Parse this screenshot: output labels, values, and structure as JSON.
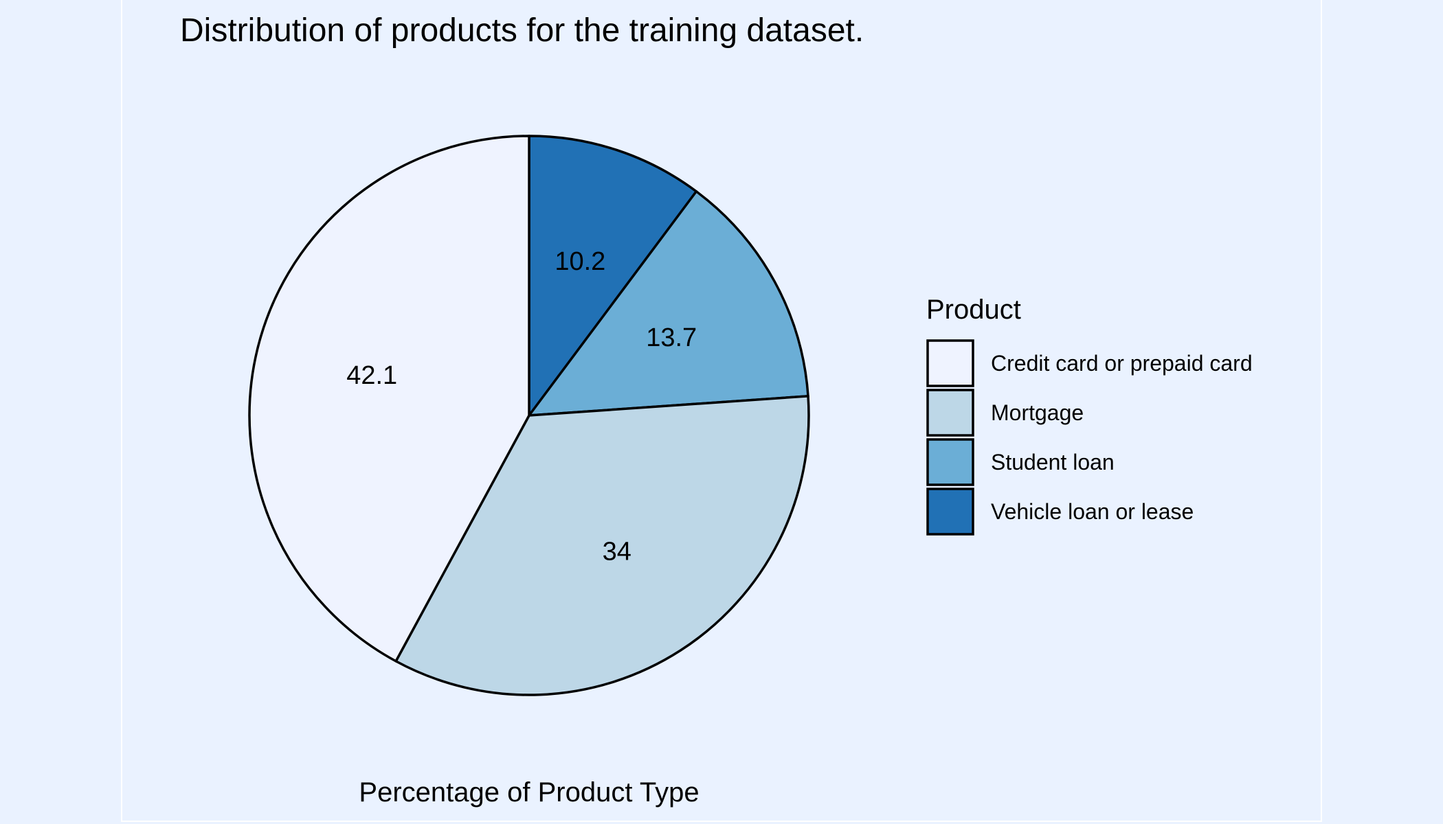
{
  "chart_data": {
    "type": "pie",
    "title": "Distribution of products for the training dataset.",
    "caption": "Percentage of Product Type",
    "legend": {
      "title": "Product",
      "position": "right"
    },
    "categories": [
      "Vehicle loan or lease",
      "Student loan",
      "Mortgage",
      "Credit card or prepaid card"
    ],
    "values": [
      10.2,
      13.7,
      34,
      42.1
    ],
    "labels": [
      "10.2",
      "13.7",
      "34",
      "42.1"
    ],
    "colors": [
      "#2171b5",
      "#6baed6",
      "#bdd7e7",
      "#eff3ff"
    ],
    "legend_order": [
      {
        "label": "Credit card or prepaid card",
        "color": "#eff3ff"
      },
      {
        "label": "Mortgage",
        "color": "#bdd7e7"
      },
      {
        "label": "Student loan",
        "color": "#6baed6"
      },
      {
        "label": "Vehicle loan or lease",
        "color": "#2171b5"
      }
    ]
  }
}
